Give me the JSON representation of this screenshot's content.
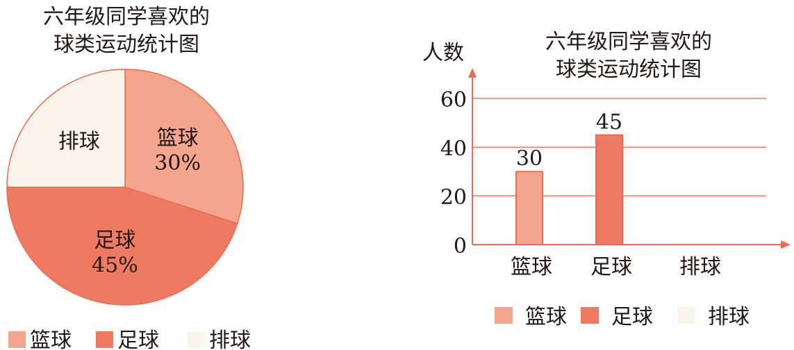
{
  "colors": {
    "basketball": "#f3a68d",
    "football": "#ee7b61",
    "volleyball": "#fbf4ea",
    "axis": "#ec6a4e",
    "grid": "#ec7a60"
  },
  "chart_data": [
    {
      "type": "pie",
      "title": [
        "六年级同学喜欢的",
        "球类运动统计图"
      ],
      "slices": [
        {
          "label": "篮球",
          "value": 30,
          "value_label": "30%"
        },
        {
          "label": "足球",
          "value": 45,
          "value_label": "45%"
        },
        {
          "label": "排球",
          "value": 25,
          "value_label": ""
        }
      ],
      "legend": {
        "placement": "bottom",
        "entries": [
          "篮球",
          "足球",
          "排球"
        ]
      }
    },
    {
      "type": "bar",
      "title": [
        "六年级同学喜欢的",
        "球类运动统计图"
      ],
      "ylabel": "人数",
      "categories": [
        "篮球",
        "足球",
        "排球"
      ],
      "values": [
        30,
        45,
        null
      ],
      "data_labels": [
        "30",
        "45",
        ""
      ],
      "ylim": [
        0,
        60
      ],
      "yticks": [
        "0",
        "20",
        "40",
        "60"
      ],
      "grid": true,
      "legend": {
        "placement": "bottom",
        "entries": [
          "篮球",
          "足球",
          "排球"
        ]
      }
    }
  ]
}
